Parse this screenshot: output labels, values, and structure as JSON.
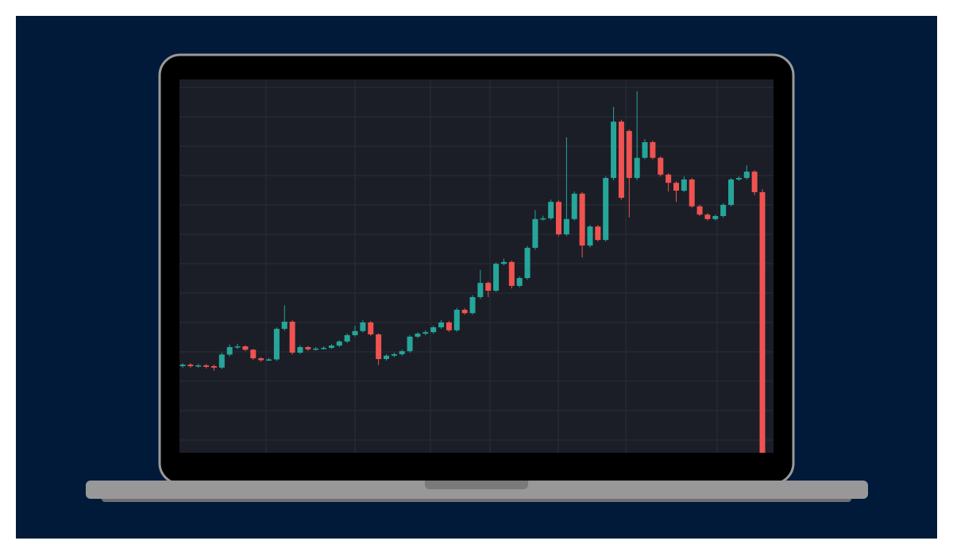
{
  "chart_data": {
    "type": "candlestick",
    "open": [
      23.2,
      23.6,
      23.2,
      23.4,
      23.2,
      22.8,
      26.3,
      28.3,
      28.5,
      27.6,
      25.3,
      24.8,
      25.0,
      33.2,
      35.1,
      26.8,
      28.3,
      27.7,
      27.9,
      28.1,
      28.7,
      29.8,
      31.5,
      32.6,
      34.9,
      31.7,
      25.1,
      26.0,
      26.4,
      27.2,
      31.1,
      31.9,
      32.3,
      33.6,
      34.9,
      32.8,
      38.3,
      37.4,
      41.7,
      45.5,
      43.4,
      50.6,
      51.1,
      44.7,
      46.8,
      54.9,
      62.6,
      62.8,
      67.2,
      58.5,
      62.6,
      69.4,
      55.5,
      60.6,
      57.0,
      73.6,
      88.7,
      86.2,
      73.6,
      79.0,
      83.2,
      79.0,
      74.5,
      72.3,
      70.2,
      73.2,
      66.0,
      63.8,
      62.6,
      63.4,
      66.4,
      73.2,
      73.6,
      75.3,
      69.8
    ],
    "high": [
      24.0,
      24.0,
      23.8,
      23.8,
      23.6,
      26.8,
      29.0,
      29.2,
      28.8,
      27.8,
      25.6,
      25.4,
      33.6,
      39.5,
      35.5,
      28.8,
      28.6,
      28.3,
      28.5,
      29.1,
      30.2,
      32.0,
      34.0,
      35.5,
      35.3,
      32.0,
      26.4,
      26.8,
      27.6,
      31.5,
      32.3,
      32.8,
      34.0,
      35.5,
      35.3,
      38.8,
      38.7,
      42.2,
      49.0,
      45.9,
      51.0,
      52.0,
      51.5,
      47.2,
      55.4,
      65.0,
      63.5,
      67.8,
      67.6,
      84.5,
      70.0,
      69.8,
      61.0,
      61.0,
      74.0,
      92.6,
      89.2,
      86.6,
      96.8,
      84.0,
      83.6,
      79.4,
      74.9,
      72.7,
      74.0,
      73.6,
      66.4,
      64.2,
      63.8,
      66.8,
      73.6,
      74.0,
      77.0,
      75.7,
      70.6
    ],
    "low": [
      22.8,
      22.8,
      22.8,
      22.6,
      22.0,
      22.4,
      25.8,
      27.8,
      27.2,
      24.9,
      24.4,
      24.6,
      24.6,
      32.7,
      26.3,
      26.4,
      27.3,
      27.4,
      27.6,
      27.8,
      28.3,
      29.4,
      31.1,
      32.2,
      31.3,
      23.5,
      24.7,
      25.6,
      26.0,
      26.8,
      30.7,
      31.5,
      31.9,
      33.2,
      32.4,
      32.4,
      37.0,
      37.0,
      41.2,
      41.7,
      43.0,
      50.2,
      44.0,
      44.3,
      46.4,
      54.4,
      62.2,
      62.4,
      58.0,
      58.0,
      62.2,
      52.3,
      55.0,
      56.6,
      56.6,
      73.0,
      67.8,
      63.0,
      73.0,
      78.6,
      78.6,
      74.0,
      70.0,
      67.2,
      69.8,
      65.6,
      63.4,
      62.2,
      62.2,
      63.0,
      66.0,
      72.8,
      73.2,
      69.0,
      0
    ],
    "close": [
      23.6,
      23.2,
      23.4,
      23.0,
      22.8,
      26.3,
      28.3,
      28.5,
      27.6,
      25.3,
      24.8,
      25.0,
      33.2,
      35.1,
      26.8,
      28.3,
      27.7,
      27.9,
      28.1,
      28.7,
      29.8,
      31.5,
      32.6,
      34.9,
      31.7,
      25.1,
      26.0,
      26.4,
      27.2,
      31.1,
      31.9,
      32.3,
      33.6,
      34.9,
      32.8,
      38.3,
      37.4,
      41.7,
      45.5,
      43.4,
      50.6,
      51.1,
      44.7,
      46.8,
      54.9,
      62.6,
      62.8,
      67.2,
      58.5,
      62.6,
      69.4,
      55.5,
      60.6,
      57.0,
      73.6,
      88.7,
      68.3,
      73.6,
      79.0,
      83.2,
      79.0,
      74.5,
      72.3,
      70.2,
      73.2,
      66.0,
      63.8,
      62.6,
      63.4,
      66.4,
      73.2,
      73.6,
      75.3,
      69.8,
      0
    ],
    "up_color": "#26a69a",
    "down_color": "#ef5350",
    "ylim": [
      0,
      100
    ],
    "grid": true
  }
}
